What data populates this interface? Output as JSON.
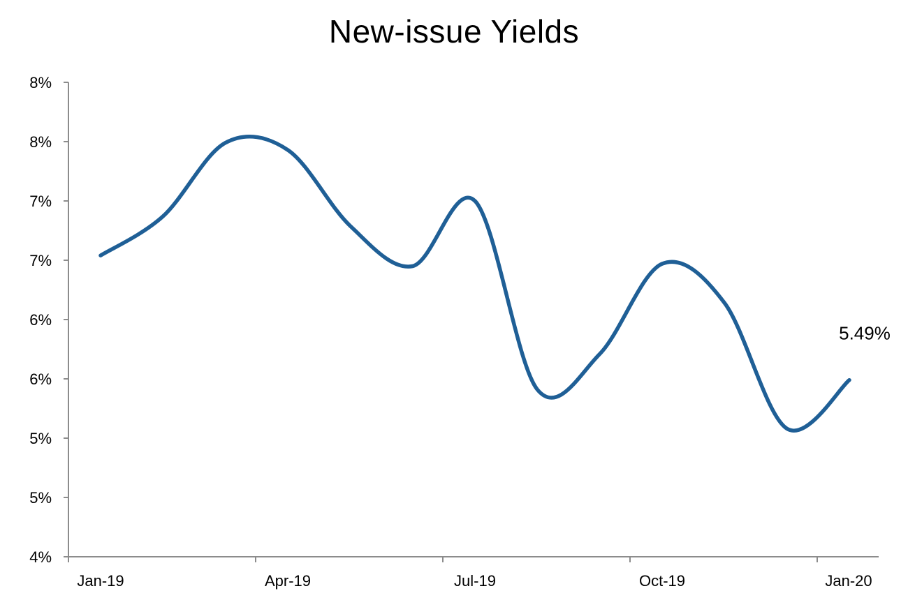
{
  "chart_data": {
    "type": "line",
    "title": "New-issue Yields",
    "xlabel": "",
    "ylabel": "",
    "x_tick_labels": [
      "Jan-19",
      "Apr-19",
      "Jul-19",
      "Oct-19",
      "Jan-20"
    ],
    "y_tick_labels": [
      "4%",
      "5%",
      "5%",
      "6%",
      "6%",
      "7%",
      "7%",
      "8%",
      "8%"
    ],
    "ylim": [
      4.0,
      8.0
    ],
    "x_range_months": [
      0,
      12.5
    ],
    "grid": false,
    "legend": "none",
    "series": [
      {
        "color": "#1f5f96",
        "points": [
          {
            "x": "2019-01",
            "y": 6.54
          },
          {
            "x": "2019-02",
            "y": 6.87
          },
          {
            "x": "2019-03",
            "y": 7.49
          },
          {
            "x": "2019-04",
            "y": 7.43
          },
          {
            "x": "2019-05",
            "y": 6.79
          },
          {
            "x": "2019-06",
            "y": 6.45
          },
          {
            "x": "2019-07",
            "y": 7.0
          },
          {
            "x": "2019-08",
            "y": 5.41
          },
          {
            "x": "2019-09",
            "y": 5.71
          },
          {
            "x": "2019-10",
            "y": 6.47
          },
          {
            "x": "2019-11",
            "y": 6.14
          },
          {
            "x": "2019-12",
            "y": 5.08
          },
          {
            "x": "2020-01",
            "y": 5.49
          }
        ]
      }
    ],
    "annotations": [
      {
        "text": "5.49%",
        "target_point": 12
      }
    ]
  },
  "colors": {
    "line": "#1f5f96",
    "axis": "#8c8c8c",
    "text": "#000000"
  }
}
